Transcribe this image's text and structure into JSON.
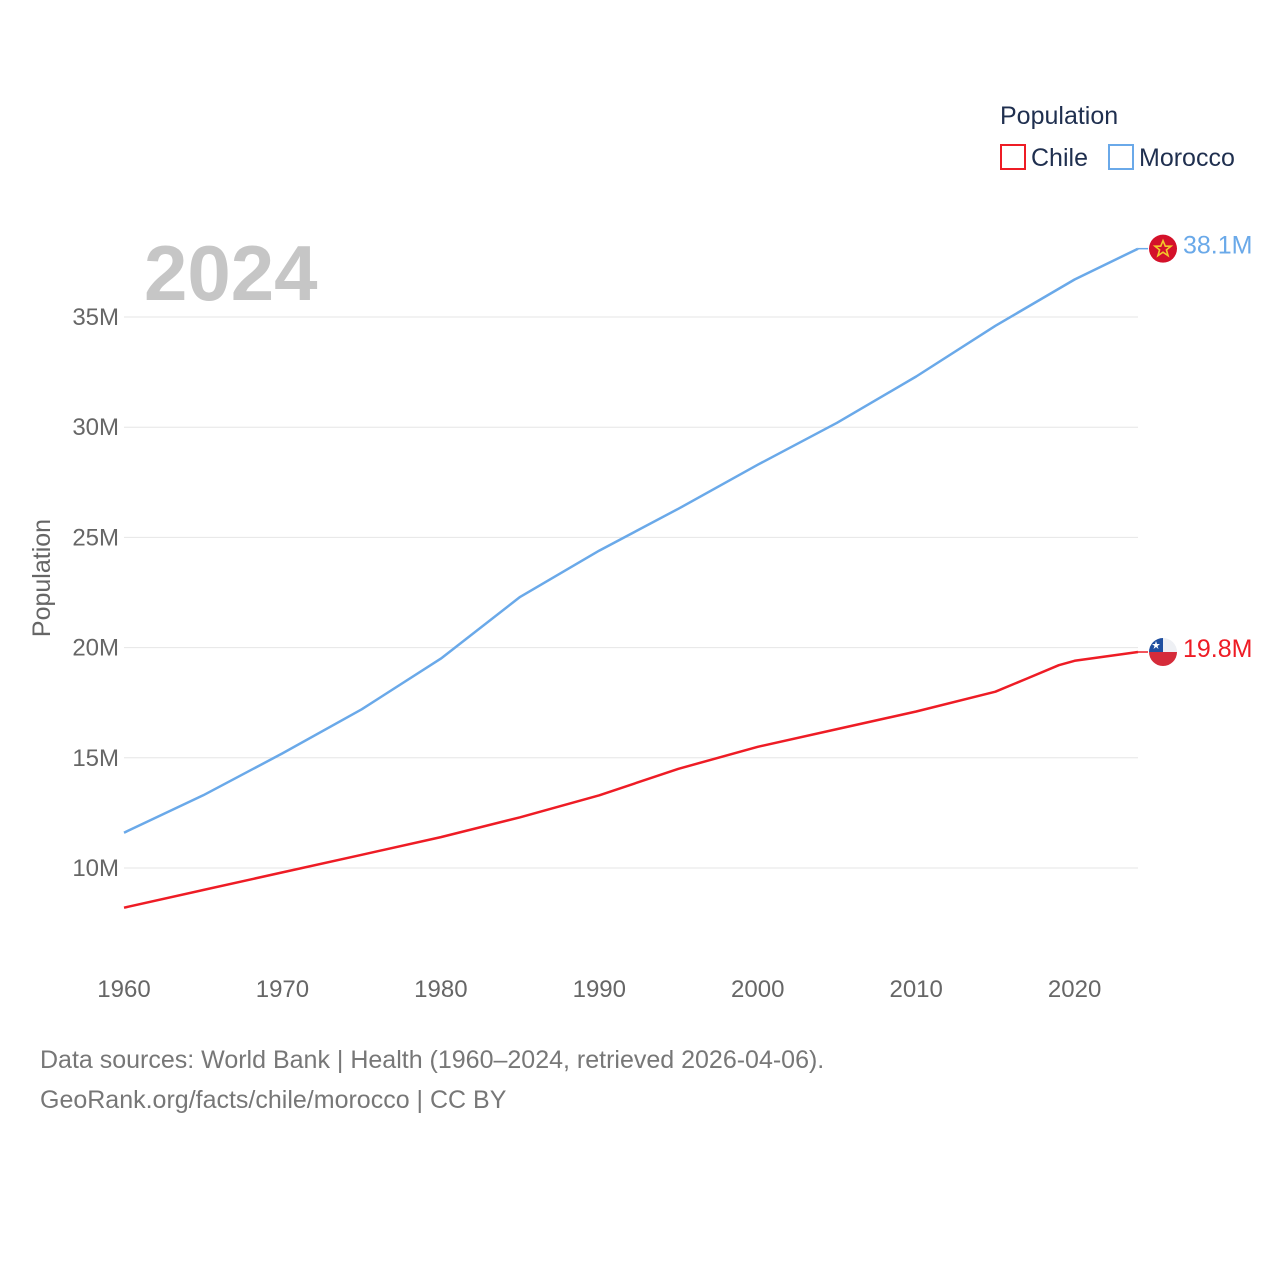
{
  "chart_data": {
    "type": "line",
    "title": "Population",
    "ylabel": "Population",
    "xlabel": "",
    "current_year_label": "2024",
    "xlim": [
      1960,
      2024
    ],
    "ylim": [
      7000000,
      38000000
    ],
    "x_ticks": [
      1960,
      1970,
      1980,
      1990,
      2000,
      2010,
      2020
    ],
    "x_tick_labels": [
      "1960",
      "1970",
      "1980",
      "1990",
      "2000",
      "2010",
      "2020"
    ],
    "y_ticks": [
      10000000,
      15000000,
      20000000,
      25000000,
      30000000,
      35000000
    ],
    "y_tick_labels": [
      "10M",
      "15M",
      "20M",
      "25M",
      "30M",
      "35M"
    ],
    "grid": true,
    "legend": {
      "title": "Population",
      "position": "top-right"
    },
    "series": [
      {
        "name": "Chile",
        "color": "#ee1c25",
        "end_label": "19.8M",
        "flag_icon": "chile-flag-icon",
        "points": [
          [
            1960,
            8200000
          ],
          [
            1965,
            9000000
          ],
          [
            1970,
            9800000
          ],
          [
            1975,
            10600000
          ],
          [
            1980,
            11400000
          ],
          [
            1985,
            12300000
          ],
          [
            1990,
            13300000
          ],
          [
            1995,
            14500000
          ],
          [
            2000,
            15500000
          ],
          [
            2005,
            16300000
          ],
          [
            2010,
            17100000
          ],
          [
            2015,
            18000000
          ],
          [
            2017,
            18600000
          ],
          [
            2019,
            19200000
          ],
          [
            2020,
            19400000
          ],
          [
            2022,
            19600000
          ],
          [
            2024,
            19800000
          ]
        ]
      },
      {
        "name": "Morocco",
        "color": "#6aa9e9",
        "end_label": "38.1M",
        "flag_icon": "morocco-flag-icon",
        "points": [
          [
            1960,
            11600000
          ],
          [
            1965,
            13300000
          ],
          [
            1970,
            15200000
          ],
          [
            1975,
            17200000
          ],
          [
            1980,
            19500000
          ],
          [
            1985,
            22300000
          ],
          [
            1990,
            24400000
          ],
          [
            1995,
            26300000
          ],
          [
            2000,
            28300000
          ],
          [
            2005,
            30200000
          ],
          [
            2010,
            32300000
          ],
          [
            2015,
            34600000
          ],
          [
            2020,
            36700000
          ],
          [
            2024,
            38100000
          ]
        ]
      }
    ]
  },
  "source": {
    "line1": "Data sources: World Bank | Health (1960–2024, retrieved 2026-04-06).",
    "line2": "GeoRank.org/facts/chile/morocco | CC BY"
  }
}
